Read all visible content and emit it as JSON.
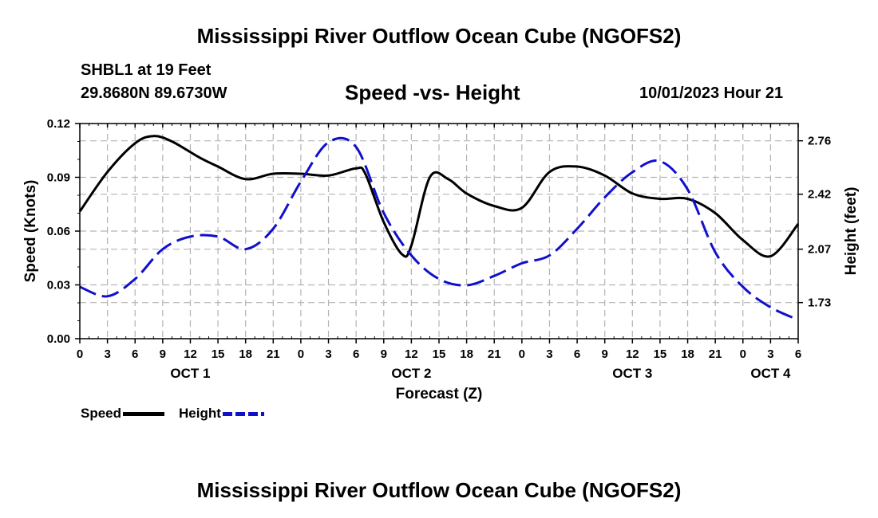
{
  "page": {
    "title": "Mississippi River Outflow Ocean Cube (NGOFS2)",
    "title_repeat": "Mississippi River Outflow Ocean Cube (NGOFS2)",
    "station": "SHBL1 at 19 Feet",
    "coords": "29.8680N  89.6730W",
    "subtitle": "Speed -vs- Height",
    "datetime": "10/01/2023 Hour 21"
  },
  "chart_data": {
    "type": "line",
    "title": "Speed -vs- Height",
    "xlabel": "Forecast (Z)",
    "ylabel": "Speed (Knots)",
    "y2label": "Height (feet)",
    "xlim": [
      0,
      78
    ],
    "ylim": [
      0,
      0.12
    ],
    "y2lim": [
      1.5,
      2.87
    ],
    "grid": true,
    "x_ticks": [
      0,
      3,
      6,
      9,
      12,
      15,
      18,
      21,
      24,
      27,
      30,
      33,
      36,
      39,
      42,
      45,
      48,
      51,
      54,
      57,
      60,
      63,
      66,
      69,
      72,
      75,
      78
    ],
    "x_tick_labels": [
      "0",
      "3",
      "6",
      "9",
      "12",
      "15",
      "18",
      "21",
      "0",
      "3",
      "6",
      "9",
      "12",
      "15",
      "18",
      "21",
      "0",
      "3",
      "6",
      "9",
      "12",
      "15",
      "18",
      "21",
      "0",
      "3",
      "6"
    ],
    "y_ticks": [
      0,
      0.03,
      0.06,
      0.09,
      0.12
    ],
    "y_tick_labels": [
      "0.00",
      "0.03",
      "0.06",
      "0.09",
      "0.12"
    ],
    "y2_ticks": [
      1.73,
      2.07,
      2.42,
      2.76
    ],
    "y2_tick_labels": [
      "1.73",
      "2.07",
      "2.42",
      "2.76"
    ],
    "date_labels": [
      {
        "x": 12,
        "label": "OCT 1"
      },
      {
        "x": 36,
        "label": "OCT 2"
      },
      {
        "x": 60,
        "label": "OCT 3"
      },
      {
        "x": 75,
        "label": "OCT 4"
      }
    ],
    "series": [
      {
        "name": "Speed",
        "axis": "left",
        "color": "#000000",
        "dash": "solid",
        "x": [
          0,
          3,
          6,
          8,
          10,
          13,
          15,
          18,
          21,
          24,
          27,
          30,
          31,
          33,
          35,
          36,
          38,
          40,
          42,
          45,
          48,
          51,
          54,
          57,
          60,
          63,
          66,
          69,
          72,
          75,
          78
        ],
        "y": [
          0.071,
          0.093,
          0.109,
          0.113,
          0.11,
          0.101,
          0.096,
          0.089,
          0.092,
          0.092,
          0.091,
          0.095,
          0.092,
          0.065,
          0.047,
          0.052,
          0.09,
          0.089,
          0.081,
          0.074,
          0.073,
          0.093,
          0.096,
          0.091,
          0.081,
          0.078,
          0.078,
          0.07,
          0.055,
          0.046,
          0.064
        ]
      },
      {
        "name": "Height",
        "axis": "right",
        "color": "#1010cc",
        "dash": "dashed",
        "x": [
          0,
          3,
          6,
          9,
          12,
          15,
          18,
          21,
          24,
          27,
          30,
          33,
          36,
          39,
          42,
          45,
          48,
          51,
          54,
          57,
          60,
          63,
          66,
          69,
          72,
          75,
          78
        ],
        "y": [
          1.83,
          1.77,
          1.88,
          2.07,
          2.15,
          2.15,
          2.07,
          2.2,
          2.5,
          2.75,
          2.72,
          2.3,
          2.03,
          1.88,
          1.84,
          1.9,
          1.98,
          2.03,
          2.2,
          2.4,
          2.56,
          2.63,
          2.45,
          2.05,
          1.83,
          1.7,
          1.62
        ]
      }
    ],
    "legend": [
      "Speed",
      "Height"
    ],
    "legend_position": "bottom-left"
  }
}
